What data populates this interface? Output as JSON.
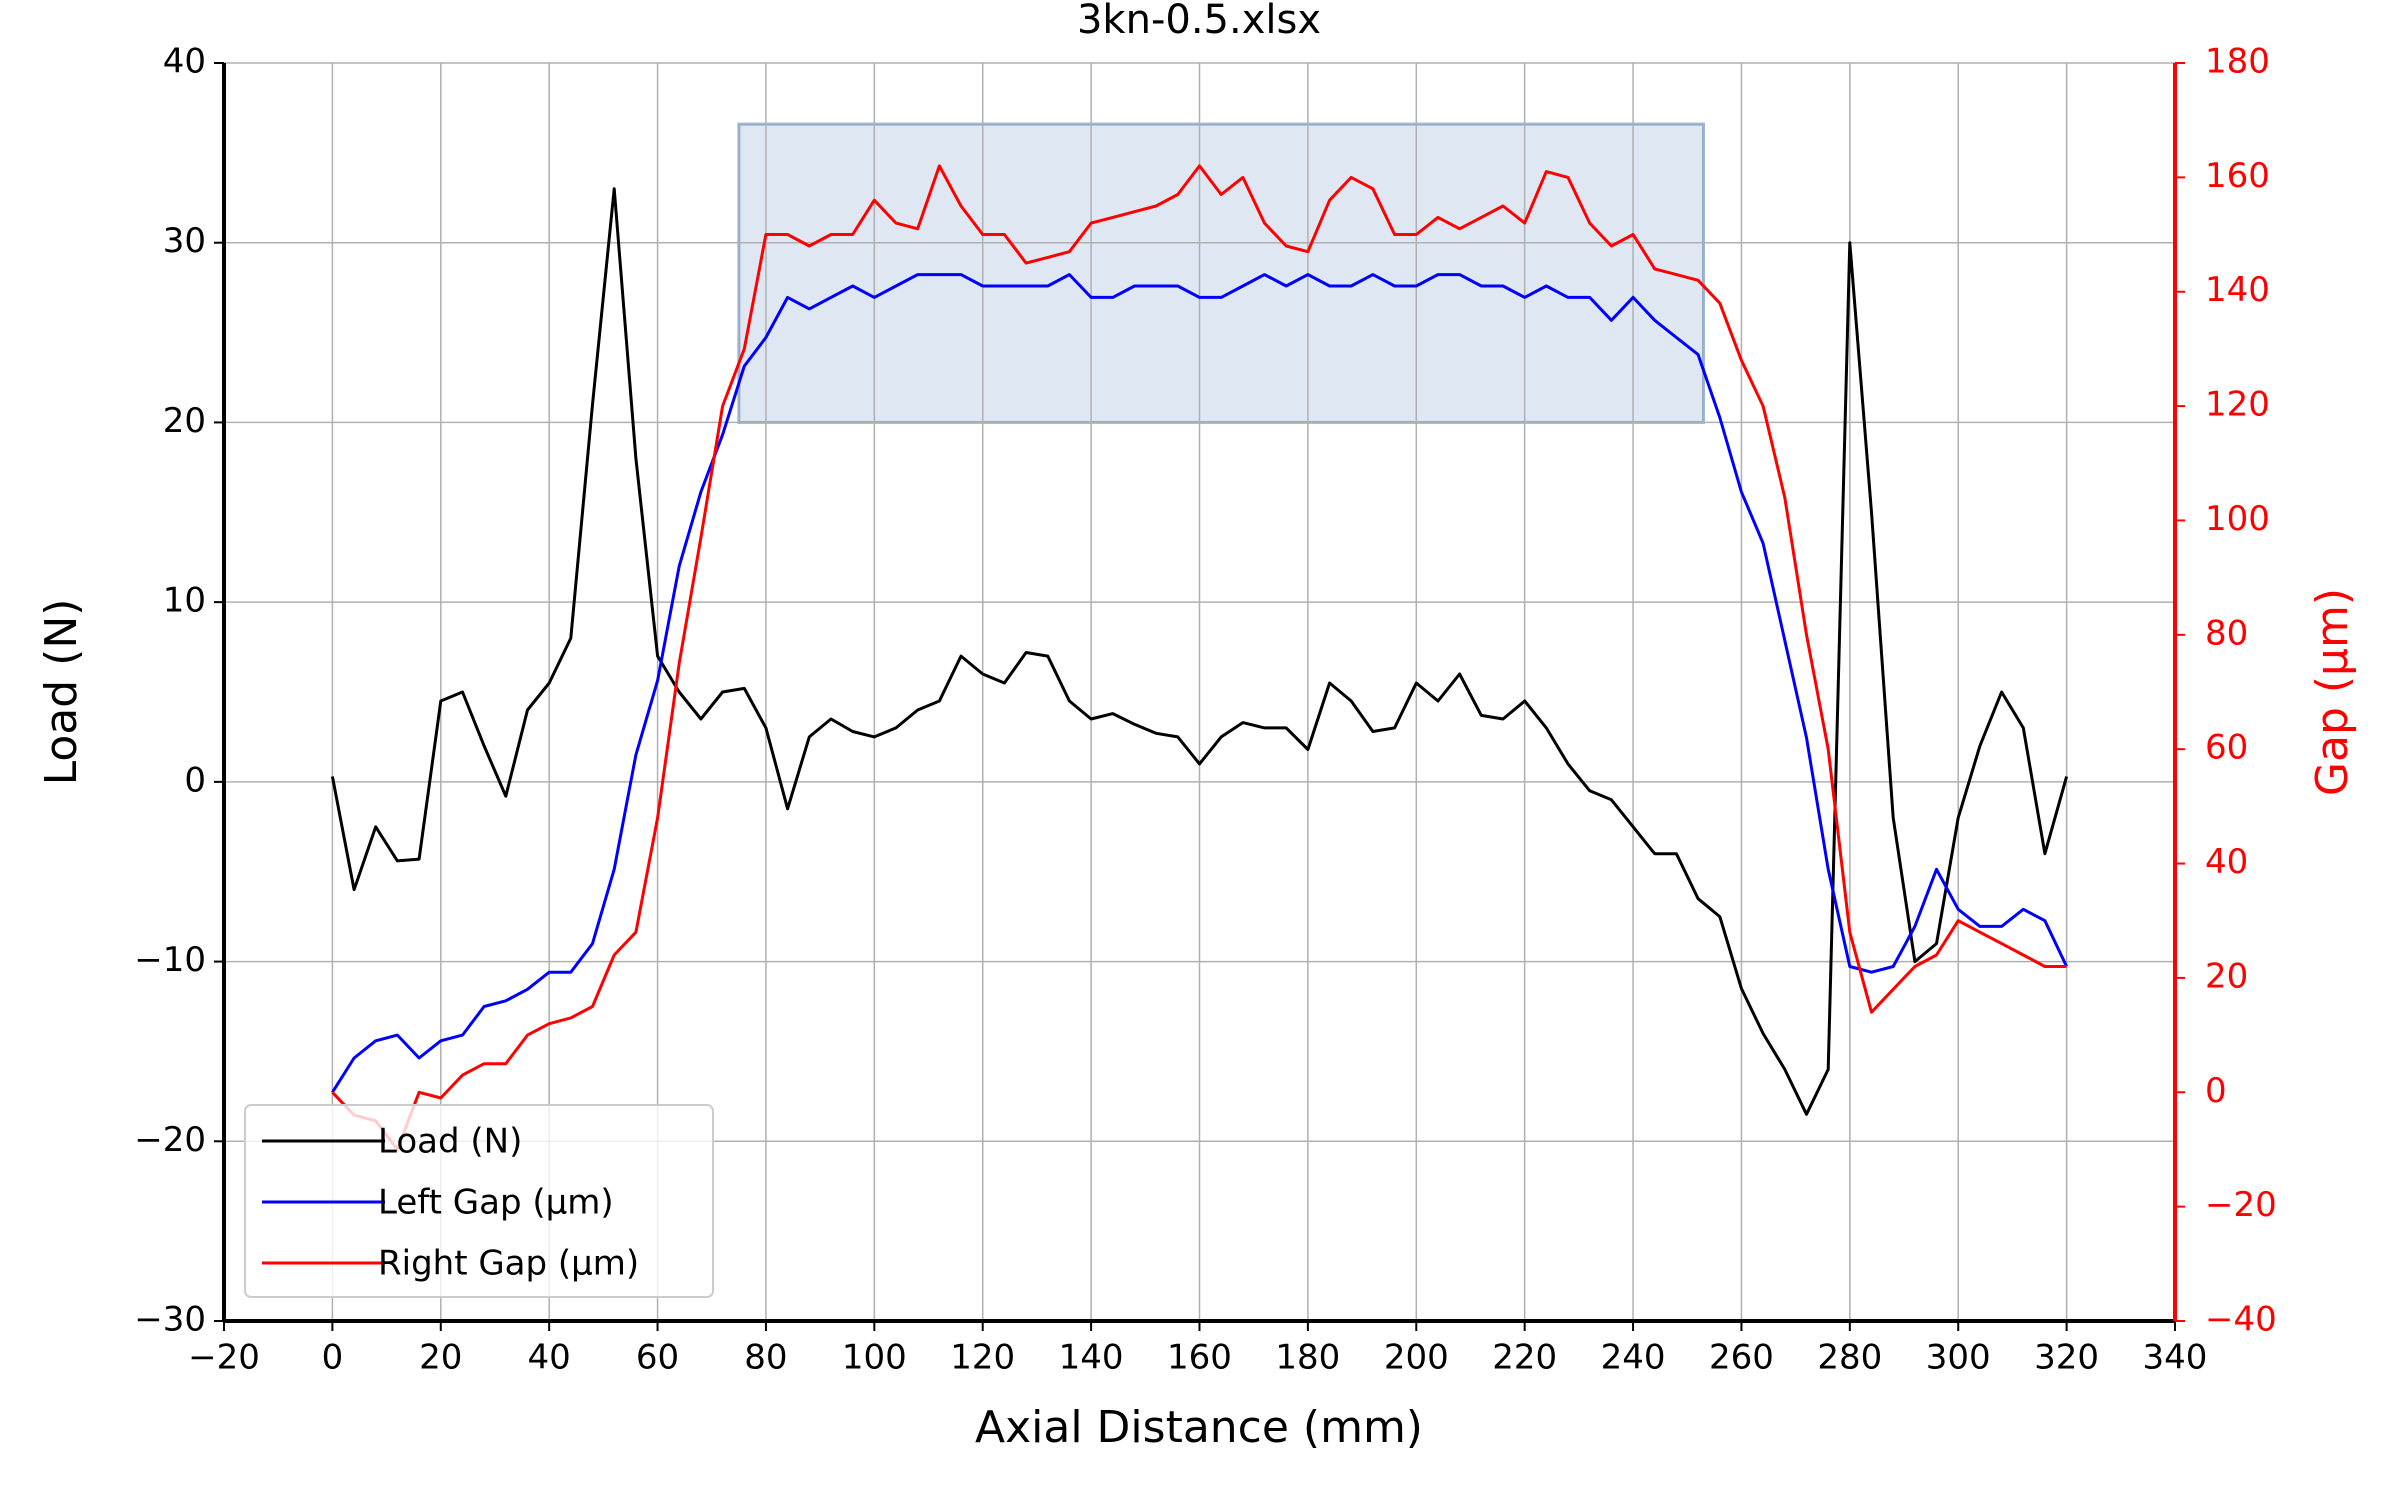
{
  "chart_data": {
    "type": "line",
    "title": "3kn-0.5.xlsx",
    "xlabel": "Axial Distance (mm)",
    "ylabel": "Load (N)",
    "y2label": "Gap (µm)",
    "x": [
      0,
      4,
      8,
      12,
      16,
      20,
      24,
      28,
      32,
      36,
      40,
      44,
      48,
      52,
      56,
      60,
      64,
      68,
      72,
      76,
      80,
      84,
      88,
      92,
      96,
      100,
      104,
      108,
      112,
      116,
      120,
      124,
      128,
      132,
      136,
      140,
      144,
      148,
      152,
      156,
      160,
      164,
      168,
      172,
      176,
      180,
      184,
      188,
      192,
      196,
      200,
      204,
      208,
      212,
      216,
      220,
      224,
      228,
      232,
      236,
      240,
      244,
      248,
      252,
      256,
      260,
      264,
      268,
      272,
      276,
      280,
      284,
      288,
      292,
      296,
      300,
      304,
      308,
      312,
      316,
      320
    ],
    "series": [
      {
        "name": "Load (N)",
        "color": "#000000",
        "values": [
          0.3,
          -6,
          -2.5,
          -4.4,
          -4.3,
          4.5,
          5,
          2,
          -0.8,
          4,
          5.5,
          8,
          21,
          33,
          18,
          7,
          5,
          3.5,
          5,
          5.2,
          3,
          -1.5,
          2.5,
          3.5,
          2.8,
          2.5,
          3,
          4,
          4.5,
          7,
          6,
          5.5,
          7.2,
          7,
          4.5,
          3.5,
          3.8,
          3.2,
          2.7,
          2.5,
          1,
          2.5,
          3.3,
          3,
          3,
          1.8,
          5.5,
          4.5,
          2.8,
          3,
          5.5,
          4.5,
          6,
          3.7,
          3.5,
          4.5,
          3,
          1,
          -0.5,
          -1,
          -2.5,
          -4,
          -4,
          -6.5,
          -7.5,
          -11.5,
          -14,
          -16,
          -18.5,
          -16,
          30,
          15,
          -2,
          -10,
          -9,
          -2,
          2,
          5,
          3,
          -4,
          0.3
        ]
      },
      {
        "name": "Left Gap (µm)",
        "color": "#0000ff",
        "axis": "y2",
        "values": [
          0,
          6,
          9,
          10,
          6,
          9,
          10,
          15,
          16,
          18,
          21,
          21,
          26,
          39,
          59,
          72,
          92,
          105,
          115,
          127,
          132,
          139,
          137,
          139,
          141,
          139,
          141,
          143,
          143,
          143,
          141,
          141,
          141,
          141,
          143,
          139,
          139,
          141,
          141,
          141,
          139,
          139,
          141,
          143,
          141,
          143,
          141,
          141,
          143,
          141,
          141,
          143,
          143,
          141,
          141,
          139,
          141,
          139,
          139,
          135,
          139,
          135,
          132,
          129,
          118,
          105,
          96,
          79,
          62,
          39,
          22,
          21,
          22,
          29,
          39,
          32,
          29,
          29,
          32,
          30,
          22
        ]
      },
      {
        "name": "Right Gap (µm)",
        "color": "#ff0000",
        "axis": "y2",
        "values": [
          0,
          -4,
          -5,
          -10,
          0,
          -1,
          3,
          5,
          5,
          10,
          12,
          13,
          15,
          24,
          28,
          48,
          75,
          97,
          120,
          130,
          150,
          150,
          148,
          150,
          150,
          156,
          152,
          151,
          162,
          155,
          150,
          150,
          145,
          146,
          147,
          152,
          153,
          154,
          155,
          157,
          162,
          157,
          160,
          152,
          148,
          147,
          156,
          160,
          158,
          150,
          150,
          153,
          151,
          153,
          155,
          152,
          161,
          160,
          152,
          148,
          150,
          144,
          143,
          142,
          138,
          128,
          120,
          104,
          80,
          60,
          28,
          14,
          18,
          22,
          24,
          30,
          28,
          26,
          24,
          22,
          22
        ]
      }
    ],
    "xlim": [
      -20,
      340
    ],
    "ylim": [
      -30,
      40
    ],
    "y2lim": [
      -40,
      180
    ],
    "xticks": [
      {
        "value": -20,
        "label": "−20"
      },
      0,
      20,
      40,
      60,
      80,
      100,
      120,
      140,
      160,
      180,
      200,
      220,
      240,
      260,
      280,
      300,
      320,
      340
    ],
    "yticks": [
      {
        "value": -30,
        "label": "−30"
      },
      {
        "value": -20,
        "label": "−20"
      },
      {
        "value": -10,
        "label": "−10"
      },
      0,
      10,
      20,
      30,
      40
    ],
    "y2ticks": [
      {
        "value": -40,
        "label": "−40"
      },
      {
        "value": -20,
        "label": "−20"
      },
      0,
      20,
      40,
      60,
      80,
      100,
      120,
      140,
      160,
      180
    ],
    "y2color": "#ff0000",
    "grid": true,
    "legend": "lower left",
    "shaded_region": {
      "xlim": [
        75,
        253
      ],
      "ylim": [
        20,
        36.6
      ],
      "color": "#b0c4de"
    }
  }
}
